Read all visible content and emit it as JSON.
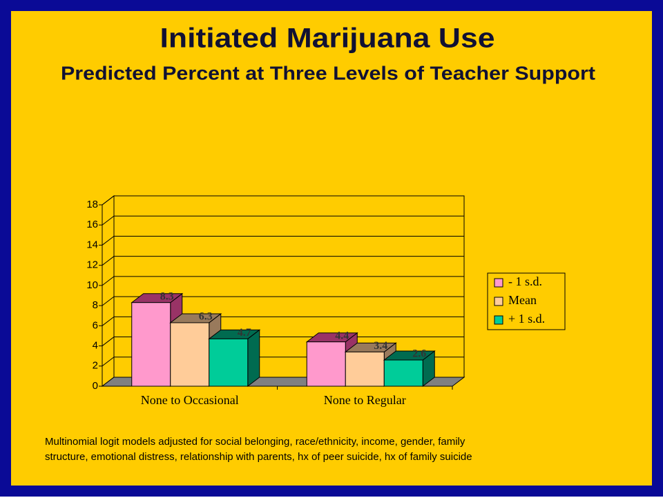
{
  "chart_data": {
    "type": "bar3d",
    "title": "Initiated Marijuana Use",
    "subtitle": "Predicted Percent at Three Levels of Teacher Support",
    "categories": [
      "None to Occasional",
      "None to Regular"
    ],
    "series": [
      {
        "name": "- 1 s.d.",
        "color": "#FF99CC",
        "side": "#993366",
        "values": [
          8.3,
          4.4
        ]
      },
      {
        "name": "Mean",
        "color": "#FFCC99",
        "side": "#997A5C",
        "values": [
          6.3,
          3.4
        ]
      },
      {
        "name": "+ 1 s.d.",
        "color": "#00CC99",
        "side": "#006B50",
        "values": [
          4.7,
          2.6
        ]
      }
    ],
    "ylim": [
      0,
      18
    ],
    "yticks": [
      0,
      2,
      4,
      6,
      8,
      10,
      12,
      14,
      16,
      18
    ],
    "grid": true,
    "legend": "right",
    "note": [
      "Multinomial logit models adjusted for social belonging, race/ethnicity, income, gender, family",
      "structure, emotional distress, relationship with parents, hx of peer suicide, hx of family suicide"
    ]
  }
}
